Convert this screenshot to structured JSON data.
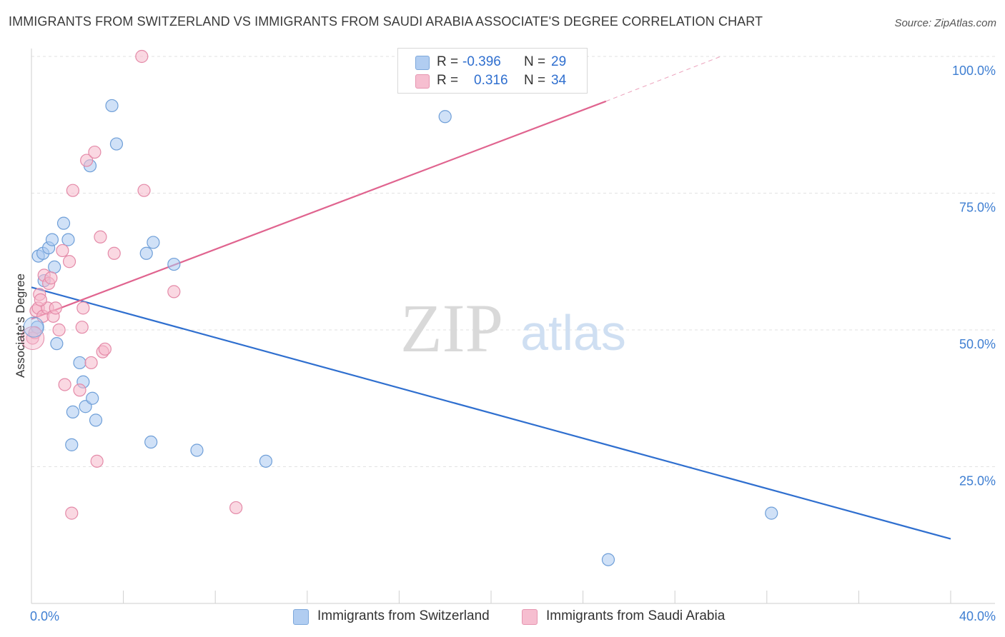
{
  "title": "IMMIGRANTS FROM SWITZERLAND VS IMMIGRANTS FROM SAUDI ARABIA ASSOCIATE'S DEGREE CORRELATION CHART",
  "source": "Source: ZipAtlas.com",
  "watermark": {
    "zip": "ZIP",
    "atlas": "atlas"
  },
  "legend": {
    "r_label": "R =",
    "n_label": "N =",
    "series": [
      {
        "name": "Immigrants from Switzerland",
        "r": "-0.396",
        "n": "29",
        "color": "#a9c8f0",
        "stroke": "#6f9fd8",
        "line": "#2f6fcf"
      },
      {
        "name": "Immigrants from Saudi Arabia",
        "r": "0.316",
        "n": "34",
        "color": "#f6b8cb",
        "stroke": "#e48aa8",
        "line": "#e0648f"
      }
    ]
  },
  "chart_data": {
    "type": "scatter",
    "title": "IMMIGRANTS FROM SWITZERLAND VS IMMIGRANTS FROM SAUDI ARABIA ASSOCIATE'S DEGREE CORRELATION CHART",
    "xlabel": "",
    "ylabel": "Associate's Degree",
    "xlim": [
      0,
      40
    ],
    "ylim": [
      0,
      100
    ],
    "x_tick_labels": [
      "0.0%",
      "40.0%"
    ],
    "y_ticks": [
      25,
      50,
      75,
      100
    ],
    "y_tick_labels": [
      "25.0%",
      "50.0%",
      "75.0%",
      "100.0%"
    ],
    "grid": true,
    "series": [
      {
        "name": "Immigrants from Switzerland",
        "points": [
          [
            0.25,
            50.5
          ],
          [
            0.3,
            63.5
          ],
          [
            0.5,
            64.0
          ],
          [
            0.55,
            59.0
          ],
          [
            0.75,
            65.0
          ],
          [
            0.9,
            66.5
          ],
          [
            1.0,
            61.5
          ],
          [
            1.1,
            47.5
          ],
          [
            1.4,
            69.5
          ],
          [
            1.6,
            66.5
          ],
          [
            1.75,
            29.0
          ],
          [
            1.8,
            35.0
          ],
          [
            2.1,
            44.0
          ],
          [
            2.25,
            40.5
          ],
          [
            2.35,
            36.0
          ],
          [
            2.55,
            80.0
          ],
          [
            2.65,
            37.5
          ],
          [
            2.8,
            33.5
          ],
          [
            3.5,
            91.0
          ],
          [
            3.7,
            84.0
          ],
          [
            5.0,
            64.0
          ],
          [
            5.2,
            29.5
          ],
          [
            5.3,
            66.0
          ],
          [
            6.2,
            62.0
          ],
          [
            7.2,
            28.0
          ],
          [
            10.2,
            26.0
          ],
          [
            18.0,
            89.0
          ],
          [
            25.1,
            8.0
          ],
          [
            32.2,
            16.5
          ]
        ],
        "trend": {
          "x": [
            0,
            40
          ],
          "y": [
            57.8,
            11.8
          ]
        }
      },
      {
        "name": "Immigrants from Saudi Arabia",
        "points": [
          [
            0.05,
            48.5
          ],
          [
            0.2,
            53.5
          ],
          [
            0.3,
            54.0
          ],
          [
            0.35,
            56.5
          ],
          [
            0.5,
            52.5
          ],
          [
            0.55,
            60.0
          ],
          [
            0.7,
            54.0
          ],
          [
            0.75,
            58.5
          ],
          [
            0.85,
            59.5
          ],
          [
            0.95,
            52.5
          ],
          [
            1.05,
            54.0
          ],
          [
            1.2,
            50.0
          ],
          [
            1.35,
            64.5
          ],
          [
            1.45,
            40.0
          ],
          [
            1.65,
            62.5
          ],
          [
            1.75,
            16.5
          ],
          [
            1.8,
            75.5
          ],
          [
            2.1,
            39.0
          ],
          [
            2.2,
            50.5
          ],
          [
            2.25,
            54.0
          ],
          [
            2.4,
            81.0
          ],
          [
            2.6,
            44.0
          ],
          [
            2.75,
            82.5
          ],
          [
            2.85,
            26.0
          ],
          [
            3.0,
            67.0
          ],
          [
            3.1,
            46.0
          ],
          [
            3.2,
            46.5
          ],
          [
            3.6,
            64.0
          ],
          [
            4.8,
            100.0
          ],
          [
            4.9,
            75.5
          ],
          [
            6.2,
            57.0
          ],
          [
            8.9,
            17.5
          ],
          [
            0.4,
            55.5
          ],
          [
            0.15,
            49.5
          ]
        ],
        "trend": {
          "x": [
            0,
            25.0
          ],
          "y": [
            52.0,
            91.8
          ]
        },
        "trend_dashed": {
          "x": [
            25.0,
            30.0
          ],
          "y": [
            91.8,
            100.0
          ]
        }
      }
    ]
  }
}
